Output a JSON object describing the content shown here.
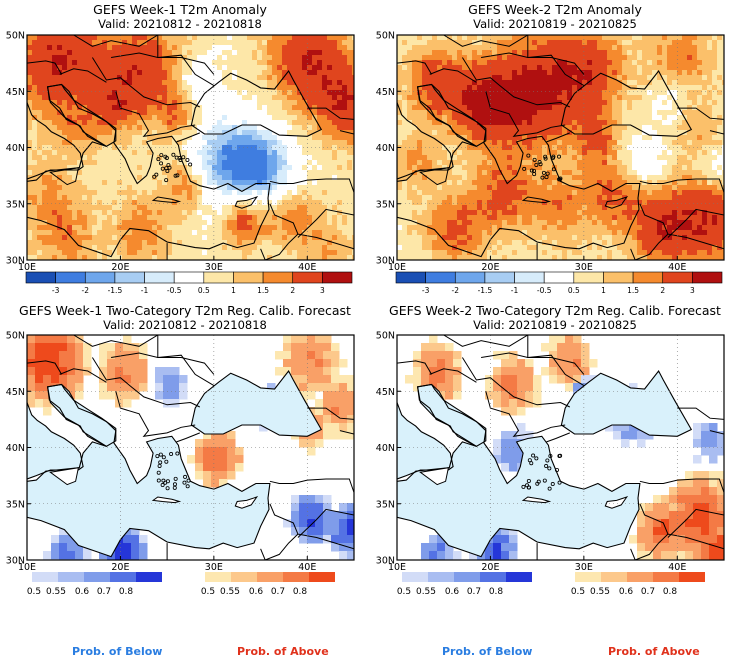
{
  "panels": [
    {
      "title": "GEFS Week-1 T2m Anomaly",
      "valid": "Valid: 20210812 - 20210818",
      "type": "anomaly"
    },
    {
      "title": "GEFS Week-2 T2m Anomaly",
      "valid": "Valid: 20210819 - 20210825",
      "type": "anomaly"
    },
    {
      "title": "GEFS Week-1 Two-Category T2m Reg. Calib. Forecast",
      "valid": "Valid: 20210812 - 20210818",
      "type": "probability"
    },
    {
      "title": "GEFS Week-2 Two-Category T2m Reg. Calib. Forecast",
      "valid": "Valid: 20210819 - 20210825",
      "type": "probability"
    }
  ],
  "lat_labels": [
    "50N",
    "45N",
    "40N",
    "35N",
    "30N"
  ],
  "lon_labels": [
    "10E",
    "20E",
    "30E",
    "40E"
  ],
  "anomaly_colorbar": {
    "ticks": [
      "-3",
      "-2",
      "-1.5",
      "-1",
      "-0.5",
      "0.5",
      "1",
      "1.5",
      "2",
      "3"
    ],
    "colors": [
      "#1a4fb4",
      "#3f7de0",
      "#6ea6ec",
      "#a8cdf3",
      "#d7ecfb",
      "#ffffff",
      "#fde7a8",
      "#fbc06a",
      "#f58a2e",
      "#e0451e",
      "#b01010"
    ]
  },
  "prob_colorbar": {
    "below_ticks": [
      "0.5",
      "0.55",
      "0.6",
      "0.7",
      "0.8"
    ],
    "above_ticks": [
      "0.5",
      "0.55",
      "0.6",
      "0.7",
      "0.8"
    ],
    "below_colors": [
      "#d2dcf7",
      "#a9bdf1",
      "#7f9cea",
      "#5472e4",
      "#2536d8"
    ],
    "above_colors": [
      "#fde7b0",
      "#fcc88b",
      "#f9a067",
      "#f47a45",
      "#ee4a1c"
    ],
    "below_label": "Prob. of Below",
    "above_label": "Prob. of Above",
    "below_label_color": "#2a7de1",
    "above_label_color": "#e0321c"
  }
}
